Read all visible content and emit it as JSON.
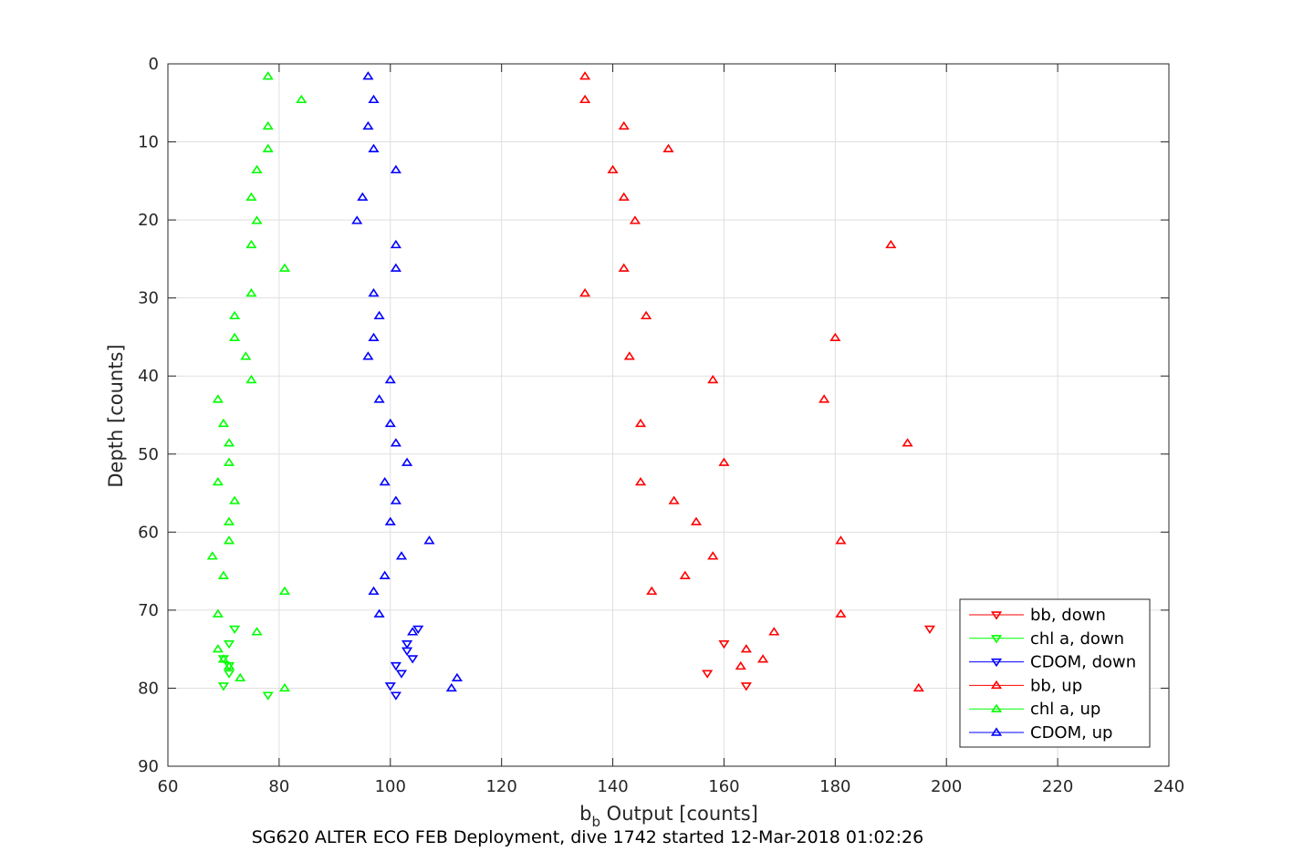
{
  "chart_data": {
    "type": "scatter",
    "xlabel_main": "b",
    "xlabel_sub": "b",
    "xlabel_rest": " Output [counts]",
    "ylabel": "Depth [counts]",
    "caption": "SG620 ALTER ECO FEB Deployment, dive 1742 started 12-Mar-2018 01:02:26",
    "xlim": [
      60,
      240
    ],
    "ylim": [
      0,
      90
    ],
    "y_reversed": true,
    "grid": true,
    "legend_position": "bottom-right",
    "xticks": [
      "60",
      "80",
      "100",
      "120",
      "140",
      "160",
      "180",
      "200",
      "220",
      "240"
    ],
    "yticks": [
      "0",
      "10",
      "20",
      "30",
      "40",
      "50",
      "60",
      "70",
      "80",
      "90"
    ],
    "series": [
      {
        "name": "bb, down",
        "color": "#ff0000",
        "marker": "triangle-down",
        "points": [
          [
            197,
            72.4
          ],
          [
            160,
            74.3
          ],
          [
            157,
            78.1
          ],
          [
            164,
            79.7
          ]
        ]
      },
      {
        "name": "chl a, down",
        "color": "#00ff00",
        "marker": "triangle-down",
        "points": [
          [
            72,
            72.4
          ],
          [
            71,
            74.3
          ],
          [
            70,
            76.2
          ],
          [
            71,
            77.1
          ],
          [
            71,
            78.1
          ],
          [
            70,
            79.7
          ],
          [
            78,
            80.9
          ]
        ]
      },
      {
        "name": "CDOM, down",
        "color": "#0000ff",
        "marker": "triangle-down",
        "points": [
          [
            105,
            72.4
          ],
          [
            103,
            74.3
          ],
          [
            103,
            75.2
          ],
          [
            104,
            76.2
          ],
          [
            101,
            77.1
          ],
          [
            102,
            78.1
          ],
          [
            100,
            79.7
          ],
          [
            101,
            80.9
          ]
        ]
      },
      {
        "name": "bb, up",
        "color": "#ff0000",
        "marker": "triangle-up",
        "points": [
          [
            135,
            1.6
          ],
          [
            135,
            4.6
          ],
          [
            142,
            8.0
          ],
          [
            150,
            10.9
          ],
          [
            140,
            13.6
          ],
          [
            142,
            17.1
          ],
          [
            144,
            20.1
          ],
          [
            190,
            23.2
          ],
          [
            142,
            26.2
          ],
          [
            135,
            29.4
          ],
          [
            146,
            32.3
          ],
          [
            180,
            35.1
          ],
          [
            143,
            37.5
          ],
          [
            158,
            40.5
          ],
          [
            178,
            43.0
          ],
          [
            145,
            46.1
          ],
          [
            193,
            48.6
          ],
          [
            160,
            51.1
          ],
          [
            145,
            53.6
          ],
          [
            151,
            56.0
          ],
          [
            155,
            58.7
          ],
          [
            181,
            61.1
          ],
          [
            158,
            63.1
          ],
          [
            153,
            65.6
          ],
          [
            147,
            67.6
          ],
          [
            181,
            70.5
          ],
          [
            169,
            72.8
          ],
          [
            164,
            75.0
          ],
          [
            167,
            76.3
          ],
          [
            163,
            77.2
          ],
          [
            195,
            80.0
          ]
        ]
      },
      {
        "name": "chl a, up",
        "color": "#00ff00",
        "marker": "triangle-up",
        "points": [
          [
            78,
            1.6
          ],
          [
            84,
            4.6
          ],
          [
            78,
            8.0
          ],
          [
            78,
            10.9
          ],
          [
            76,
            13.6
          ],
          [
            75,
            17.1
          ],
          [
            76,
            20.1
          ],
          [
            75,
            23.2
          ],
          [
            81,
            26.2
          ],
          [
            75,
            29.4
          ],
          [
            72,
            32.3
          ],
          [
            72,
            35.1
          ],
          [
            74,
            37.5
          ],
          [
            75,
            40.5
          ],
          [
            69,
            43.0
          ],
          [
            70,
            46.1
          ],
          [
            71,
            48.6
          ],
          [
            71,
            51.1
          ],
          [
            69,
            53.6
          ],
          [
            72,
            56.0
          ],
          [
            71,
            58.7
          ],
          [
            71,
            61.1
          ],
          [
            68,
            63.1
          ],
          [
            70,
            65.6
          ],
          [
            81,
            67.6
          ],
          [
            69,
            70.5
          ],
          [
            76,
            72.8
          ],
          [
            69,
            75.0
          ],
          [
            70,
            76.3
          ],
          [
            71,
            77.2
          ],
          [
            73,
            78.7
          ],
          [
            81,
            80.0
          ]
        ]
      },
      {
        "name": "CDOM, up",
        "color": "#0000ff",
        "marker": "triangle-up",
        "points": [
          [
            96,
            1.6
          ],
          [
            97,
            4.6
          ],
          [
            96,
            8.0
          ],
          [
            97,
            10.9
          ],
          [
            101,
            13.6
          ],
          [
            95,
            17.1
          ],
          [
            94,
            20.1
          ],
          [
            101,
            23.2
          ],
          [
            101,
            26.2
          ],
          [
            97,
            29.4
          ],
          [
            98,
            32.3
          ],
          [
            97,
            35.1
          ],
          [
            96,
            37.5
          ],
          [
            100,
            40.5
          ],
          [
            98,
            43.0
          ],
          [
            100,
            46.1
          ],
          [
            101,
            48.6
          ],
          [
            103,
            51.1
          ],
          [
            99,
            53.6
          ],
          [
            101,
            56.0
          ],
          [
            100,
            58.7
          ],
          [
            107,
            61.1
          ],
          [
            102,
            63.1
          ],
          [
            99,
            65.6
          ],
          [
            97,
            67.6
          ],
          [
            98,
            70.5
          ],
          [
            104,
            72.8
          ],
          [
            112,
            78.7
          ],
          [
            111,
            80.0
          ]
        ]
      }
    ]
  }
}
